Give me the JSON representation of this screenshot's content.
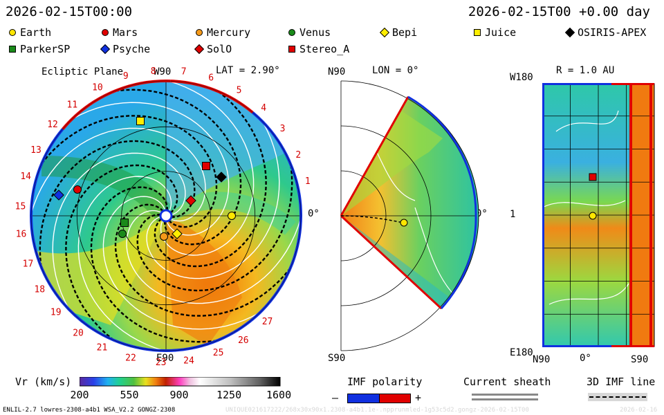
{
  "header": {
    "timestamp_left": "2026-02-15T00:00",
    "timestamp_right": "2026-02-15T00 +0.00 day"
  },
  "legend": [
    {
      "label": "Earth",
      "shape": "circle",
      "color": "#ffe600"
    },
    {
      "label": "Mars",
      "shape": "circle",
      "color": "#e00000"
    },
    {
      "label": "Mercury",
      "shape": "circle",
      "color": "#f59a1a"
    },
    {
      "label": "Venus",
      "shape": "circle",
      "color": "#1a8a1a"
    },
    {
      "label": "Bepi",
      "shape": "diamond",
      "color": "#ffee00"
    },
    {
      "label": "Juice",
      "shape": "square",
      "color": "#ffee00"
    },
    {
      "label": "OSIRIS-APEX",
      "shape": "diamond",
      "color": "#000000"
    },
    {
      "label": "ParkerSP",
      "shape": "square",
      "color": "#1a8a1a"
    },
    {
      "label": "Psyche",
      "shape": "diamond",
      "color": "#1030e0"
    },
    {
      "label": "SolO",
      "shape": "diamond",
      "color": "#e00000"
    },
    {
      "label": "Stereo_A",
      "shape": "square",
      "color": "#e00000"
    }
  ],
  "chart_data": [
    {
      "type": "heatmap",
      "title": "Ecliptic Plane",
      "subtitle": "LAT = 2.90°",
      "axis_labels": {
        "top": "W90",
        "bottom": "E90",
        "right": "0°"
      },
      "carrington_sectors": [
        "1",
        "2",
        "3",
        "4",
        "5",
        "6",
        "7",
        "8",
        "9",
        "10",
        "11",
        "12",
        "13",
        "14",
        "15",
        "16",
        "17",
        "18",
        "19",
        "20",
        "21",
        "22",
        "23",
        "24",
        "25",
        "26",
        "27"
      ],
      "sector_angles_deg": [
        14,
        25,
        37,
        48,
        60,
        72,
        83,
        95,
        106,
        118,
        130,
        141,
        153,
        164,
        176,
        187,
        199,
        210,
        221,
        233,
        244,
        256,
        268,
        279,
        291,
        302,
        314
      ]
    },
    {
      "type": "heatmap",
      "title": "LON = 0°",
      "axis_labels": {
        "top": "N90",
        "bottom": "S90",
        "right": "0°"
      }
    },
    {
      "type": "heatmap",
      "title": "R = 1.0 AU",
      "axis_labels": {
        "top_left": "W180",
        "bottom_left": "E180",
        "left_middle": "1",
        "bottom_middle": "0°",
        "bottom_left_x": "N90",
        "bottom_right_x": "S90"
      }
    }
  ],
  "colorbar": {
    "label": "Vr (km/s)",
    "ticks": [
      "200",
      "550",
      "900",
      "1250",
      "1600"
    ],
    "range": [
      200,
      1600
    ]
  },
  "imf_polarity": {
    "label": "IMF polarity",
    "minus": "–",
    "plus": "+"
  },
  "current_sheath": {
    "label": "Current sheath"
  },
  "imf_line": {
    "label": "3D IMF line"
  },
  "footer": {
    "model": "ENLIL-2.7 lowres-2308-a4b1 WSA_V2.2 GONGZ-2308",
    "run_id": "UNIQUE021617222/268x30x90x1.2308-a4b1.1e-.npprunmled-1g53c5d2.gongz-2026-02-15T00",
    "date_stamp": "2026-02-16"
  }
}
